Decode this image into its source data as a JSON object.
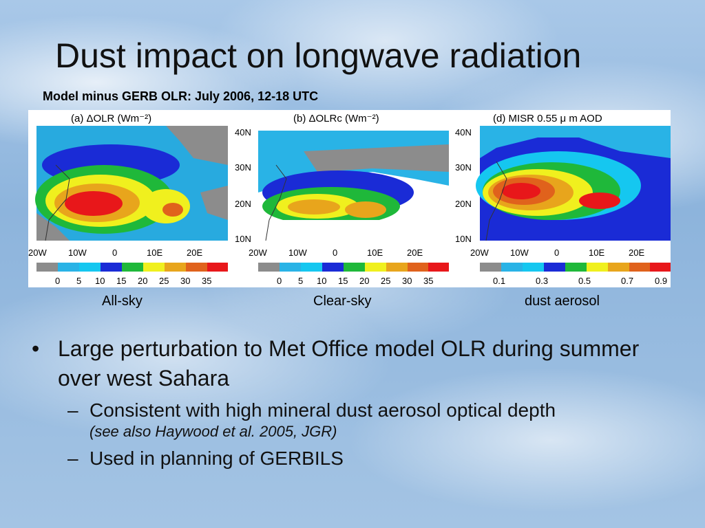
{
  "slide": {
    "title": "Dust impact on longwave radiation",
    "subtitle": "Model minus GERB OLR: July 2006, 12-18 UTC"
  },
  "panels": [
    {
      "heading": "(a)   ΔOLR  (Wm⁻²)",
      "caption": "All-sky",
      "colorbar_ticks": [
        "0",
        "5",
        "10",
        "15",
        "20",
        "25",
        "30",
        "35"
      ],
      "lon_ticks": [
        "20W",
        "10W",
        "0",
        "10E",
        "20E"
      ],
      "lat_ticks": []
    },
    {
      "heading": "(b)   ΔOLRc  (Wm⁻²)",
      "caption": "Clear-sky",
      "colorbar_ticks": [
        "0",
        "5",
        "10",
        "15",
        "20",
        "25",
        "30",
        "35"
      ],
      "lon_ticks": [
        "20W",
        "10W",
        "0",
        "10E",
        "20E"
      ],
      "lat_ticks": [
        "40N",
        "30N",
        "20N",
        "10N"
      ]
    },
    {
      "heading": "(d)  MISR  0.55  μ  m  AOD",
      "caption": "dust aerosol",
      "colorbar_ticks": [
        "0.1",
        "0.3",
        "0.5",
        "0.7",
        "0.9"
      ],
      "lon_ticks": [
        "20W",
        "10W",
        "0",
        "10E",
        "20E"
      ],
      "lat_ticks": [
        "40N",
        "30N",
        "20N",
        "10N"
      ]
    }
  ],
  "colorbar_colors": [
    "#8c8c8c",
    "#29b3e6",
    "#15c7f0",
    "#1a2bd6",
    "#1fb83a",
    "#f0f01e",
    "#e8a51c",
    "#e0621c",
    "#e8171a"
  ],
  "bullets": [
    {
      "text": "Large perturbation to Met Office model OLR during summer over west Sahara",
      "sub": [
        {
          "text": "Consistent with high mineral dust aerosol optical depth",
          "cite": "(see also Haywood et al. 2005, JGR)"
        },
        {
          "text": "Used in planning of GERBILS",
          "cite": ""
        }
      ]
    }
  ]
}
